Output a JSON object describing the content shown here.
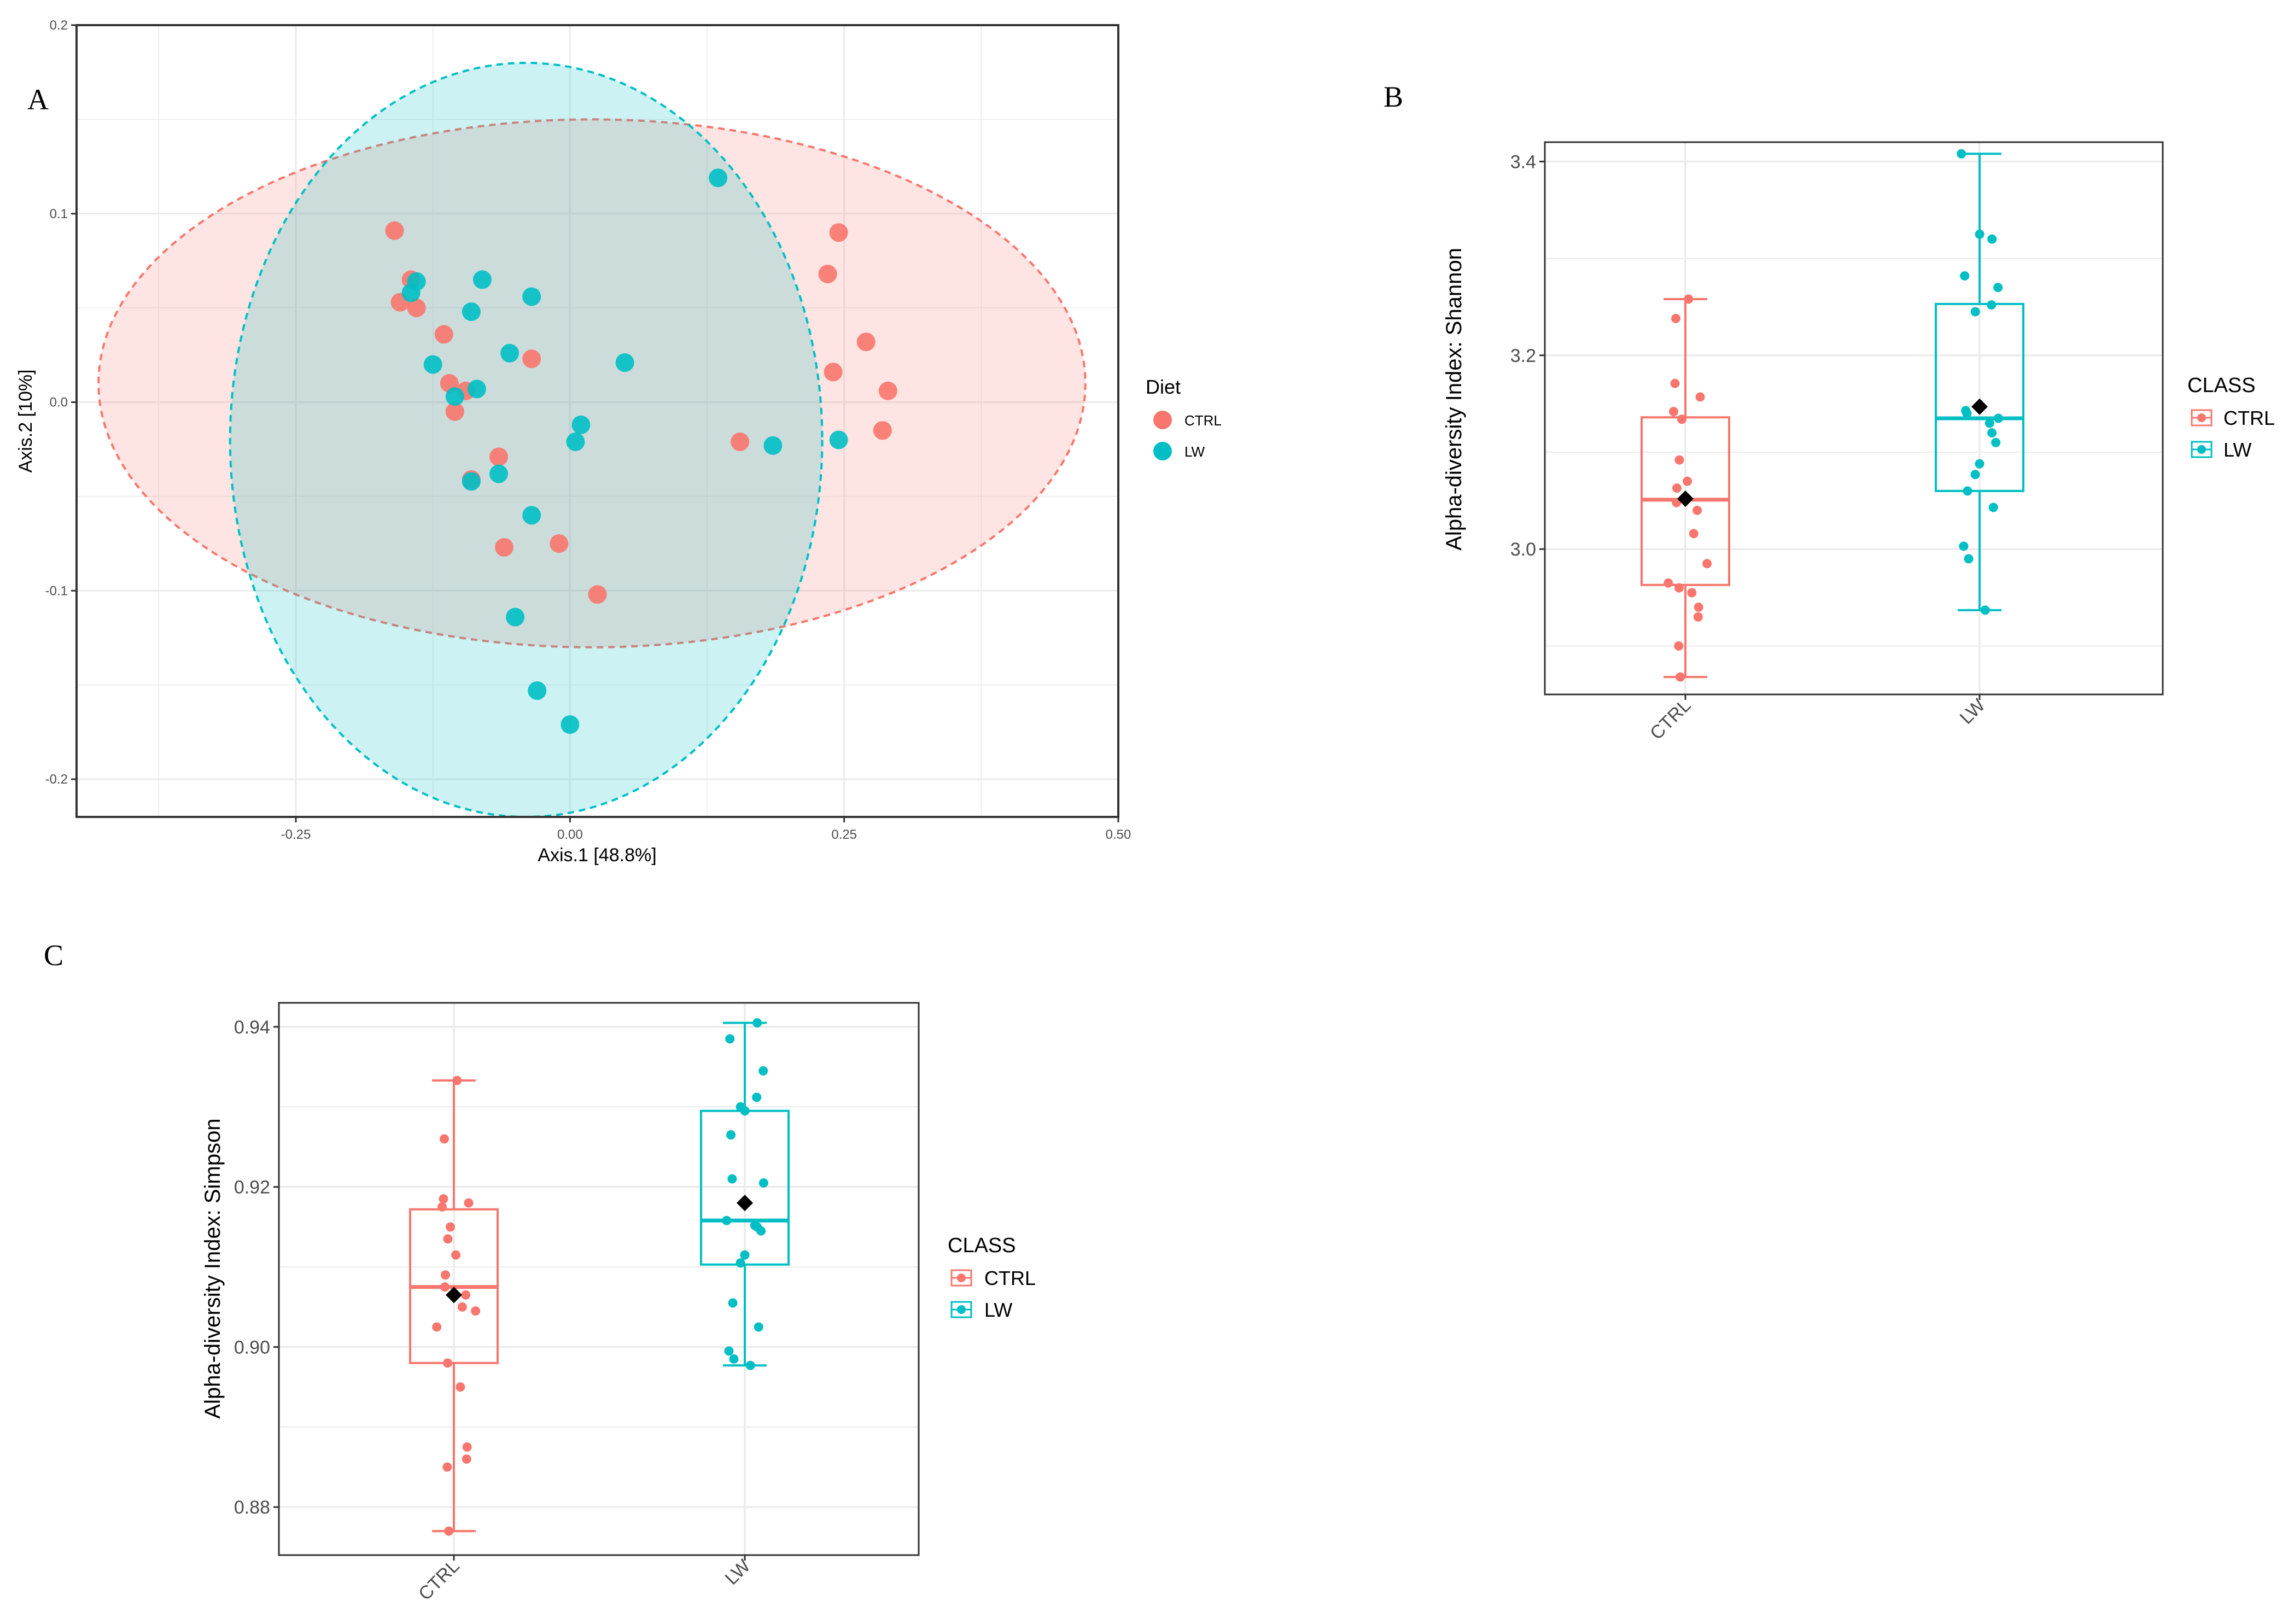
{
  "colors": {
    "ctrl": "#F8766D",
    "lw": "#00BFC4",
    "mean": "#000000",
    "grid": "#ebebeb",
    "frame": "#333333"
  },
  "chart_data": [
    {
      "panel": "A",
      "type": "scatter",
      "xlabel": "Axis.1   [48.8%]",
      "ylabel": "Axis.2   [10%]",
      "xlim": [
        -0.45,
        0.5
      ],
      "ylim": [
        -0.22,
        0.2
      ],
      "x_ticks": [
        "-0.25",
        "0.00",
        "0.25",
        "0.50"
      ],
      "x_tick_values": [
        -0.25,
        0,
        0.25,
        0.5
      ],
      "y_ticks": [
        "-0.2",
        "-0.1",
        "0.0",
        "0.1",
        "0.2"
      ],
      "y_tick_values": [
        -0.2,
        -0.1,
        0,
        0.1,
        0.2
      ],
      "grid": true,
      "legend_title": "Diet",
      "legend_position": "right",
      "series": [
        {
          "name": "CTRL",
          "color_key": "ctrl",
          "ellipse": {
            "cx": 0.02,
            "cy": 0.01,
            "rx": 0.45,
            "ry": 0.14
          },
          "points": [
            [
              -0.16,
              0.091
            ],
            [
              -0.155,
              0.053
            ],
            [
              -0.145,
              0.065
            ],
            [
              -0.14,
              0.05
            ],
            [
              -0.115,
              0.036
            ],
            [
              -0.11,
              0.01
            ],
            [
              -0.105,
              -0.005
            ],
            [
              -0.095,
              0.006
            ],
            [
              -0.09,
              -0.041
            ],
            [
              -0.065,
              -0.029
            ],
            [
              -0.06,
              -0.077
            ],
            [
              -0.035,
              0.023
            ],
            [
              -0.01,
              -0.075
            ],
            [
              0.025,
              -0.102
            ],
            [
              0.155,
              -0.021
            ],
            [
              0.235,
              0.068
            ],
            [
              0.245,
              0.09
            ],
            [
              0.27,
              0.032
            ],
            [
              0.24,
              0.016
            ],
            [
              0.285,
              -0.015
            ],
            [
              0.29,
              0.006
            ]
          ]
        },
        {
          "name": "LW",
          "color_key": "lw",
          "ellipse": {
            "cx": -0.04,
            "cy": -0.02,
            "rx": 0.27,
            "ry": 0.2
          },
          "points": [
            [
              -0.145,
              0.058
            ],
            [
              -0.14,
              0.064
            ],
            [
              -0.125,
              0.02
            ],
            [
              -0.105,
              0.003
            ],
            [
              -0.09,
              -0.042
            ],
            [
              -0.09,
              0.048
            ],
            [
              -0.085,
              0.007
            ],
            [
              -0.08,
              0.065
            ],
            [
              -0.065,
              -0.038
            ],
            [
              -0.055,
              0.026
            ],
            [
              -0.05,
              -0.114
            ],
            [
              -0.035,
              0.056
            ],
            [
              -0.035,
              -0.06
            ],
            [
              -0.03,
              -0.153
            ],
            [
              0.005,
              -0.021
            ],
            [
              0.01,
              -0.012
            ],
            [
              0.0,
              -0.171
            ],
            [
              0.05,
              0.021
            ],
            [
              0.135,
              0.119
            ],
            [
              0.185,
              -0.023
            ],
            [
              0.245,
              -0.02
            ]
          ]
        }
      ]
    },
    {
      "panel": "B",
      "type": "box",
      "ylabel": "Alpha-diversity Index: Shannon",
      "categories": [
        "CTRL",
        "LW"
      ],
      "ylim": [
        2.85,
        3.42
      ],
      "y_ticks": [
        "3.0",
        "3.2",
        "3.4"
      ],
      "y_tick_values": [
        3.0,
        3.2,
        3.4
      ],
      "grid": true,
      "legend_title": "CLASS",
      "legend_position": "right",
      "series": [
        {
          "name": "CTRL",
          "color_key": "ctrl",
          "box": {
            "min": 2.868,
            "q1": 2.963,
            "median": 3.051,
            "q3": 3.136,
            "max": 3.258
          },
          "mean": 3.052,
          "points": [
            2.868,
            2.9,
            2.93,
            2.94,
            2.955,
            2.96,
            2.965,
            2.985,
            3.016,
            3.04,
            3.048,
            3.063,
            3.07,
            3.092,
            3.134,
            3.142,
            3.157,
            3.171,
            3.238,
            3.258
          ]
        },
        {
          "name": "LW",
          "color_key": "lw",
          "box": {
            "min": 2.937,
            "q1": 3.06,
            "median": 3.135,
            "q3": 3.253,
            "max": 3.408
          },
          "mean": 3.147,
          "points": [
            2.937,
            2.99,
            3.003,
            3.043,
            3.06,
            3.077,
            3.088,
            3.11,
            3.12,
            3.13,
            3.135,
            3.14,
            3.143,
            3.245,
            3.252,
            3.27,
            3.282,
            3.32,
            3.325,
            3.408
          ]
        }
      ]
    },
    {
      "panel": "C",
      "type": "box",
      "ylabel": "Alpha-diversity Index: Simpson",
      "categories": [
        "CTRL",
        "LW"
      ],
      "ylim": [
        0.874,
        0.943
      ],
      "y_ticks": [
        "0.88",
        "0.90",
        "0.92",
        "0.94"
      ],
      "y_tick_values": [
        0.88,
        0.9,
        0.92,
        0.94
      ],
      "grid": true,
      "legend_title": "CLASS",
      "legend_position": "right",
      "series": [
        {
          "name": "CTRL",
          "color_key": "ctrl",
          "box": {
            "min": 0.877,
            "q1": 0.898,
            "median": 0.9075,
            "q3": 0.9172,
            "max": 0.9333
          },
          "mean": 0.9065,
          "points": [
            0.877,
            0.885,
            0.886,
            0.8875,
            0.895,
            0.898,
            0.9025,
            0.9045,
            0.905,
            0.9065,
            0.9075,
            0.909,
            0.9115,
            0.9135,
            0.915,
            0.9175,
            0.918,
            0.9185,
            0.926,
            0.9333
          ]
        },
        {
          "name": "LW",
          "color_key": "lw",
          "box": {
            "min": 0.8977,
            "q1": 0.9103,
            "median": 0.9158,
            "q3": 0.9295,
            "max": 0.9405
          },
          "mean": 0.918,
          "points": [
            0.8977,
            0.8985,
            0.8995,
            0.9025,
            0.9055,
            0.9105,
            0.9115,
            0.9145,
            0.915,
            0.9152,
            0.9205,
            0.921,
            0.9265,
            0.93,
            0.9312,
            0.9345,
            0.9385,
            0.9405,
            0.9295,
            0.9158
          ]
        }
      ]
    }
  ]
}
